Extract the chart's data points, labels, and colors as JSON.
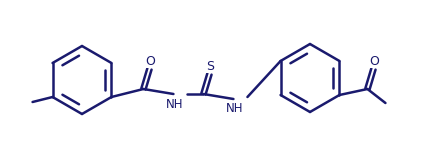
{
  "bg_color": "#ffffff",
  "line_color": "#1a1a6e",
  "lw": 1.8,
  "figsize": [
    4.25,
    1.47
  ],
  "dpi": 100,
  "O_label": "O",
  "S_label": "S",
  "NH1_label": "NH",
  "NH2_label": "NH",
  "CH3_label": "O"
}
